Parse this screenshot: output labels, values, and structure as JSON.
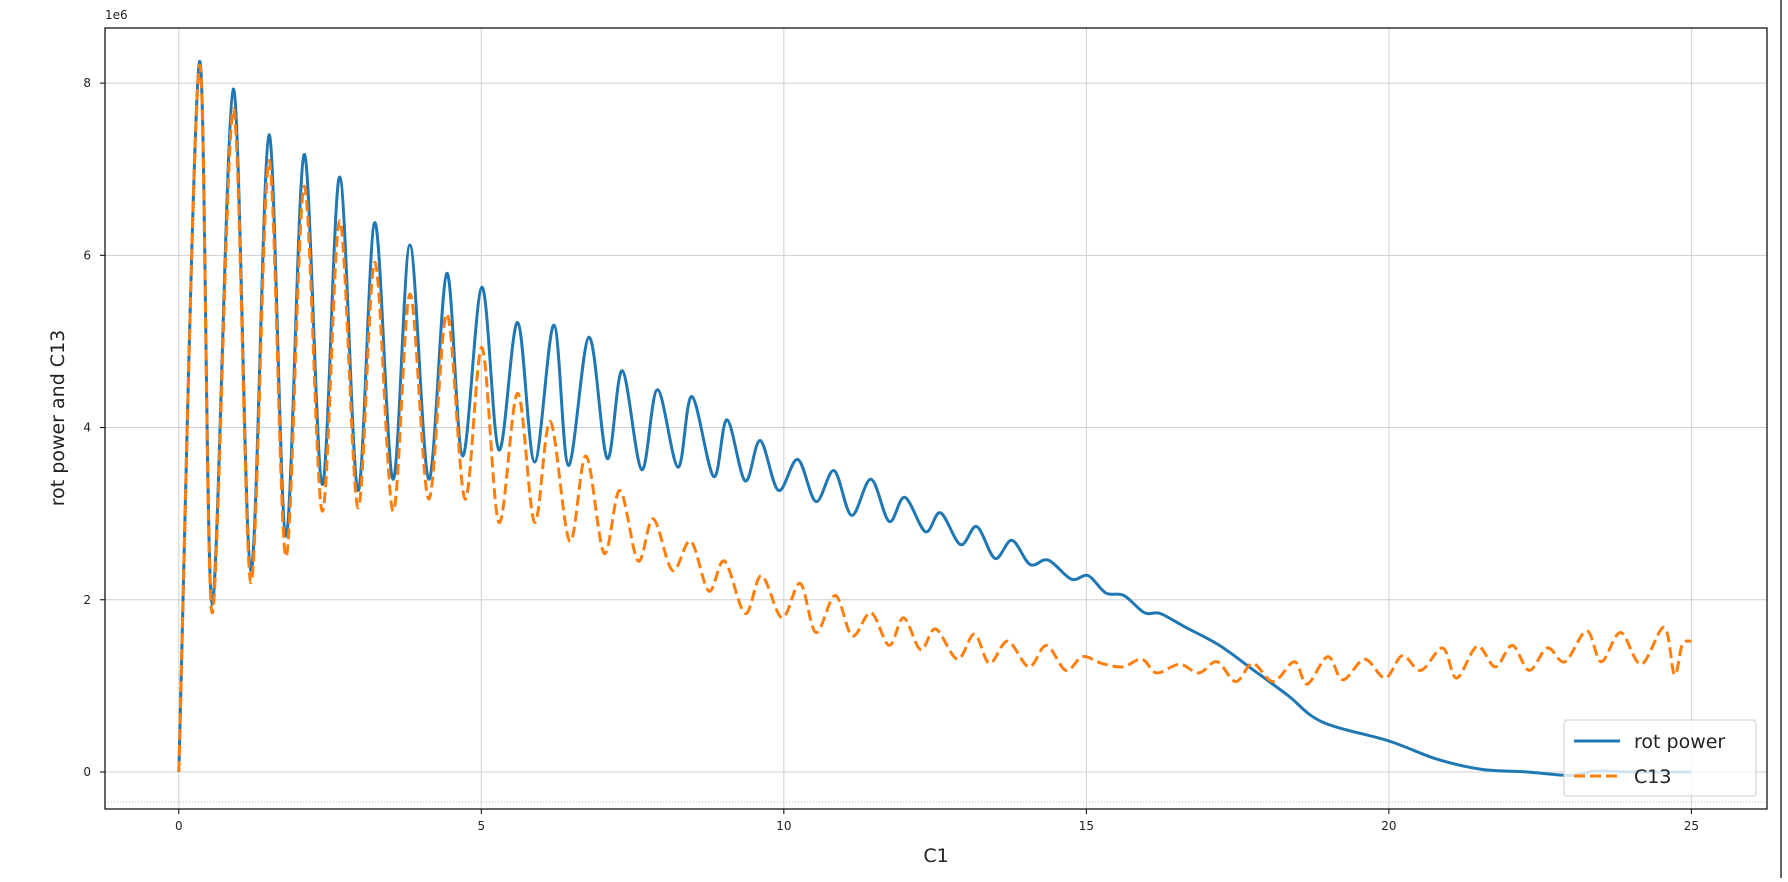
{
  "chart_data": {
    "type": "line",
    "title": "",
    "xlabel": "C1",
    "ylabel": "rot power and C13",
    "y_offset_label": "1e6",
    "xlim": [
      -1.22,
      26.25
    ],
    "ylim": [
      -0.43,
      8.64
    ],
    "y_scale_factor": 1000000,
    "xticks": [
      0,
      5,
      10,
      15,
      20,
      25
    ],
    "xtick_labels": [
      "0",
      "5",
      "10",
      "15",
      "20",
      "25"
    ],
    "yticks": [
      0,
      2,
      4,
      6,
      8
    ],
    "ytick_labels": [
      "0",
      "2",
      "4",
      "6",
      "8"
    ],
    "grid": true,
    "legend_position": "lower-right",
    "series": [
      {
        "name": "rot power",
        "color": "#1f77b4",
        "style": "solid",
        "points": [
          [
            0,
            0
          ],
          [
            0.34,
            8.24
          ],
          [
            0.55,
            1.95
          ],
          [
            0.9,
            7.93
          ],
          [
            1.19,
            2.34
          ],
          [
            1.49,
            7.4
          ],
          [
            1.77,
            2.74
          ],
          [
            2.07,
            7.17
          ],
          [
            2.37,
            3.34
          ],
          [
            2.66,
            6.91
          ],
          [
            2.96,
            3.27
          ],
          [
            3.24,
            6.38
          ],
          [
            3.54,
            3.4
          ],
          [
            3.82,
            6.12
          ],
          [
            4.13,
            3.4
          ],
          [
            4.43,
            5.79
          ],
          [
            4.69,
            3.67
          ],
          [
            5.01,
            5.63
          ],
          [
            5.29,
            3.74
          ],
          [
            5.6,
            5.22
          ],
          [
            5.88,
            3.6
          ],
          [
            6.2,
            5.19
          ],
          [
            6.44,
            3.56
          ],
          [
            6.78,
            5.05
          ],
          [
            7.08,
            3.64
          ],
          [
            7.33,
            4.66
          ],
          [
            7.65,
            3.51
          ],
          [
            7.91,
            4.44
          ],
          [
            8.25,
            3.54
          ],
          [
            8.48,
            4.36
          ],
          [
            8.84,
            3.43
          ],
          [
            9.06,
            4.09
          ],
          [
            9.36,
            3.38
          ],
          [
            9.61,
            3.85
          ],
          [
            9.91,
            3.27
          ],
          [
            10.23,
            3.63
          ],
          [
            10.53,
            3.14
          ],
          [
            10.83,
            3.5
          ],
          [
            11.12,
            2.98
          ],
          [
            11.44,
            3.4
          ],
          [
            11.74,
            2.91
          ],
          [
            12.0,
            3.19
          ],
          [
            12.34,
            2.79
          ],
          [
            12.59,
            3.01
          ],
          [
            12.92,
            2.64
          ],
          [
            13.19,
            2.85
          ],
          [
            13.49,
            2.48
          ],
          [
            13.77,
            2.69
          ],
          [
            14.07,
            2.41
          ],
          [
            14.37,
            2.46
          ],
          [
            14.75,
            2.24
          ],
          [
            15.03,
            2.28
          ],
          [
            15.32,
            2.08
          ],
          [
            15.62,
            2.05
          ],
          [
            15.96,
            1.85
          ],
          [
            16.22,
            1.84
          ],
          [
            16.64,
            1.68
          ],
          [
            17.2,
            1.47
          ],
          [
            17.77,
            1.18
          ],
          [
            18.33,
            0.89
          ],
          [
            18.9,
            0.58
          ],
          [
            20.0,
            0.36
          ],
          [
            20.79,
            0.15
          ],
          [
            21.54,
            0.03
          ],
          [
            22.29,
            0.0
          ],
          [
            23.0,
            -0.04
          ],
          [
            23.4,
            0.01
          ],
          [
            24.0,
            0.0
          ],
          [
            25.0,
            0.0
          ]
        ]
      },
      {
        "name": "C13",
        "color": "#ff7f0e",
        "style": "dashed",
        "points": [
          [
            0,
            0
          ],
          [
            0.34,
            8.2
          ],
          [
            0.55,
            1.85
          ],
          [
            0.9,
            7.7
          ],
          [
            1.19,
            2.2
          ],
          [
            1.49,
            7.1
          ],
          [
            1.77,
            2.5
          ],
          [
            2.07,
            6.8
          ],
          [
            2.37,
            3.03
          ],
          [
            2.66,
            6.4
          ],
          [
            2.96,
            3.07
          ],
          [
            3.24,
            5.92
          ],
          [
            3.54,
            3.03
          ],
          [
            3.82,
            5.55
          ],
          [
            4.13,
            3.17
          ],
          [
            4.43,
            5.32
          ],
          [
            4.73,
            3.17
          ],
          [
            5.01,
            4.93
          ],
          [
            5.29,
            2.9
          ],
          [
            5.6,
            4.4
          ],
          [
            5.88,
            2.9
          ],
          [
            6.14,
            4.07
          ],
          [
            6.46,
            2.68
          ],
          [
            6.73,
            3.67
          ],
          [
            7.03,
            2.54
          ],
          [
            7.29,
            3.27
          ],
          [
            7.59,
            2.45
          ],
          [
            7.84,
            2.94
          ],
          [
            8.16,
            2.34
          ],
          [
            8.46,
            2.68
          ],
          [
            8.76,
            2.1
          ],
          [
            9.02,
            2.45
          ],
          [
            9.36,
            1.84
          ],
          [
            9.63,
            2.28
          ],
          [
            9.97,
            1.79
          ],
          [
            10.27,
            2.19
          ],
          [
            10.53,
            1.62
          ],
          [
            10.85,
            2.05
          ],
          [
            11.13,
            1.58
          ],
          [
            11.44,
            1.85
          ],
          [
            11.74,
            1.47
          ],
          [
            11.98,
            1.79
          ],
          [
            12.26,
            1.42
          ],
          [
            12.51,
            1.66
          ],
          [
            12.87,
            1.31
          ],
          [
            13.15,
            1.6
          ],
          [
            13.4,
            1.26
          ],
          [
            13.7,
            1.52
          ],
          [
            14.05,
            1.22
          ],
          [
            14.34,
            1.47
          ],
          [
            14.66,
            1.18
          ],
          [
            14.94,
            1.34
          ],
          [
            15.26,
            1.26
          ],
          [
            15.6,
            1.22
          ],
          [
            15.92,
            1.31
          ],
          [
            16.16,
            1.15
          ],
          [
            16.54,
            1.25
          ],
          [
            16.86,
            1.15
          ],
          [
            17.16,
            1.28
          ],
          [
            17.47,
            1.05
          ],
          [
            17.75,
            1.26
          ],
          [
            18.09,
            1.05
          ],
          [
            18.44,
            1.28
          ],
          [
            18.65,
            1.02
          ],
          [
            18.99,
            1.34
          ],
          [
            19.24,
            1.07
          ],
          [
            19.6,
            1.31
          ],
          [
            19.94,
            1.09
          ],
          [
            20.22,
            1.35
          ],
          [
            20.53,
            1.18
          ],
          [
            20.89,
            1.44
          ],
          [
            21.12,
            1.09
          ],
          [
            21.46,
            1.46
          ],
          [
            21.76,
            1.22
          ],
          [
            22.04,
            1.47
          ],
          [
            22.32,
            1.18
          ],
          [
            22.62,
            1.44
          ],
          [
            22.91,
            1.28
          ],
          [
            23.27,
            1.64
          ],
          [
            23.51,
            1.28
          ],
          [
            23.83,
            1.62
          ],
          [
            24.17,
            1.25
          ],
          [
            24.55,
            1.68
          ],
          [
            24.72,
            1.13
          ],
          [
            24.85,
            1.48
          ],
          [
            25.0,
            1.52
          ]
        ]
      }
    ]
  }
}
